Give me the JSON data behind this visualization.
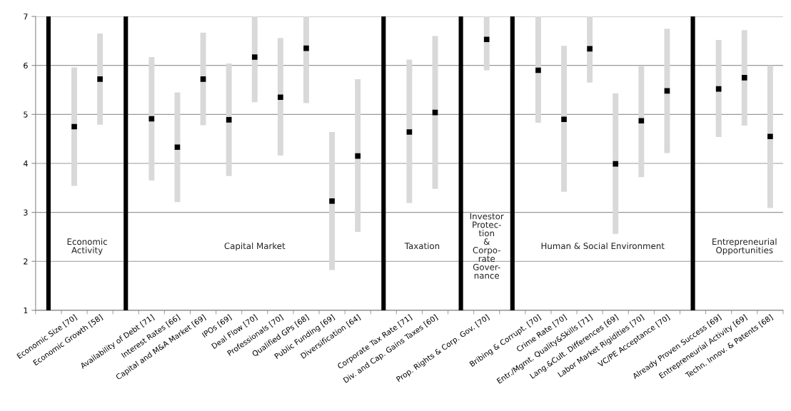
{
  "chart_data": {
    "type": "bar",
    "categories": [
      null,
      "Economic Size [70]",
      "Economic Growth [58]",
      null,
      "Availability of Debt [71]",
      "Interest Rates [66]",
      "Capital and M&A Market [69]",
      "IPOs [69]",
      "Deal Flow [70]",
      "Professionals [70]",
      "Qualified GPs [68]",
      "Public Funding [69]",
      "Diversification [64]",
      null,
      "Corporate Tax Rate [71]",
      "Div. and Cap. Gains Taxes [60]",
      null,
      "Prop. Rights & Corp. Gov. [70]",
      null,
      "Bribing & Corrupt. [70]",
      "Crime Rate [70]",
      "Entr./Mgmt. Quality&Skills [71]",
      "Lang.&Cult. Differences [69]",
      "Labor Market Rigidities [70]",
      "VC/PE Acceptance [70]",
      null,
      "Already Proven Success [69]",
      "Entrepreneurial Activity [69]",
      "Techn. Innov. & Patents [68]"
    ],
    "series": [
      {
        "color": "#d9d9d9",
        "base": [
          null,
          3.54,
          4.79,
          null,
          3.65,
          3.21,
          4.78,
          3.74,
          5.25,
          4.16,
          5.23,
          1.82,
          2.6,
          null,
          3.19,
          3.48,
          null,
          5.9,
          null,
          4.83,
          3.42,
          5.65,
          2.56,
          3.72,
          4.21,
          null,
          4.54,
          4.77,
          3.09
        ],
        "values": [
          null,
          2.42,
          1.86,
          null,
          2.52,
          2.24,
          1.89,
          2.3,
          1.75,
          2.4,
          1.77,
          2.82,
          3.12,
          null,
          2.93,
          3.12,
          null,
          1.1,
          null,
          2.17,
          2.98,
          1.35,
          2.87,
          2.26,
          2.54,
          null,
          1.98,
          1.95,
          2.91
        ]
      },
      {
        "color": "#000000",
        "base": [
          1,
          null,
          null,
          1,
          null,
          null,
          null,
          null,
          null,
          null,
          null,
          null,
          null,
          1,
          null,
          null,
          1,
          null,
          1,
          null,
          null,
          null,
          null,
          null,
          null,
          1,
          null,
          null,
          null
        ],
        "values": [
          6,
          null,
          null,
          6,
          null,
          null,
          null,
          null,
          null,
          null,
          null,
          null,
          null,
          6,
          null,
          null,
          6,
          null,
          6,
          null,
          null,
          null,
          null,
          null,
          null,
          6,
          null,
          null,
          null
        ]
      },
      {
        "type": "scatter",
        "color": "#000000",
        "marker": "square",
        "values": [
          null,
          4.75,
          5.72,
          null,
          4.91,
          4.33,
          5.72,
          4.89,
          6.17,
          5.35,
          6.35,
          3.23,
          4.15,
          null,
          4.64,
          5.04,
          null,
          6.53,
          null,
          5.9,
          4.9,
          6.34,
          3.99,
          4.87,
          5.48,
          null,
          5.52,
          5.75,
          4.55
        ]
      }
    ],
    "annotations": [
      "Economic\nActivity",
      "Capital Market",
      "Taxation",
      "Investor\nProtec-\ntion\n&\nCorpo-\nrate\nGover-\nnance",
      "Human & Social Environment",
      "Entrepreneurial\nOpportunities"
    ],
    "ylim": [
      1,
      7
    ],
    "yticks": [
      1,
      2,
      3,
      4,
      5,
      6,
      7
    ],
    "grid": "y",
    "legend": false
  }
}
